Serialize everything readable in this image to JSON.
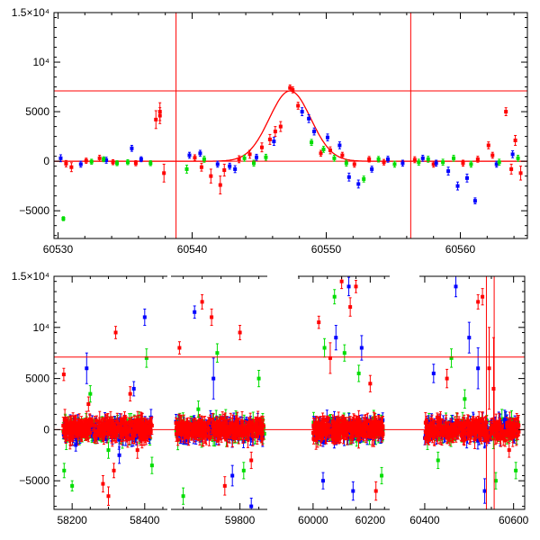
{
  "chart_data": [
    {
      "type": "scatter",
      "title": "",
      "xlabel": "",
      "ylabel": "",
      "xlim": [
        60529.7,
        60565
      ],
      "ylim": [
        -7800,
        15000
      ],
      "x_ticks": [
        60530,
        60540,
        60550,
        60560
      ],
      "x_tick_labels": [
        "60530",
        "60540",
        "60550",
        "60560"
      ],
      "y_ticks": [
        -5000,
        0,
        5000,
        10000,
        15000
      ],
      "y_tick_labels": [
        "−5000",
        "0",
        "5000",
        "10⁴",
        "1.5×10⁴"
      ],
      "hlines": [
        0,
        7100
      ],
      "vlines": [
        60538.8,
        60556.3
      ],
      "model_curve": {
        "color": "#ff0000",
        "shape": "gaussian",
        "peak_x": 60547.3,
        "peak_y": 7100,
        "sigma_days": 1.55
      },
      "series": [
        {
          "color": "#ff0000",
          "points": [
            [
              60530.6,
              -250,
              320
            ],
            [
              60531.0,
              -600,
              450
            ],
            [
              60532.1,
              50,
              260
            ],
            [
              60533.1,
              300,
              300
            ],
            [
              60534.1,
              -100,
              250
            ],
            [
              60535.8,
              -200,
              260
            ],
            [
              60537.3,
              4200,
              900
            ],
            [
              60537.6,
              5000,
              900
            ],
            [
              60537.6,
              4600,
              800
            ],
            [
              60537.9,
              -1200,
              900
            ],
            [
              60540.2,
              350,
              300
            ],
            [
              60540.7,
              -600,
              400
            ],
            [
              60541.4,
              -1500,
              700
            ],
            [
              60542.1,
              -2400,
              900
            ],
            [
              60542.4,
              -900,
              600
            ],
            [
              60543.5,
              200,
              350
            ],
            [
              60544.3,
              700,
              400
            ],
            [
              60545.2,
              1400,
              450
            ],
            [
              60545.8,
              2200,
              500
            ],
            [
              60546.2,
              3000,
              500
            ],
            [
              60546.6,
              3500,
              500
            ],
            [
              60547.3,
              7400,
              300
            ],
            [
              60547.5,
              7200,
              300
            ],
            [
              60547.9,
              5600,
              350
            ],
            [
              60549.6,
              800,
              300
            ],
            [
              60550.3,
              1100,
              350
            ],
            [
              60551.2,
              600,
              300
            ],
            [
              60552.1,
              -300,
              300
            ],
            [
              60553.2,
              200,
              280
            ],
            [
              60554.3,
              -100,
              280
            ],
            [
              60556.6,
              150,
              300
            ],
            [
              60558.0,
              -300,
              300
            ],
            [
              60560.2,
              -200,
              300
            ],
            [
              60561.3,
              200,
              300
            ],
            [
              60562.1,
              1600,
              350
            ],
            [
              60562.4,
              600,
              300
            ],
            [
              60563.4,
              5000,
              400
            ],
            [
              60563.8,
              -800,
              500
            ],
            [
              60564.1,
              2100,
              500
            ],
            [
              60564.5,
              -1200,
              700
            ]
          ]
        },
        {
          "color": "#0000ff",
          "points": [
            [
              60530.2,
              300,
              350
            ],
            [
              60531.7,
              -300,
              300
            ],
            [
              60533.6,
              100,
              300
            ],
            [
              60535.5,
              1300,
              300
            ],
            [
              60536.2,
              200,
              250
            ],
            [
              60539.8,
              600,
              300
            ],
            [
              60540.6,
              800,
              300
            ],
            [
              60541.9,
              -300,
              300
            ],
            [
              60542.8,
              -500,
              300
            ],
            [
              60543.2,
              -800,
              350
            ],
            [
              60544.8,
              400,
              300
            ],
            [
              60546.1,
              2000,
              400
            ],
            [
              60548.2,
              5000,
              400
            ],
            [
              60548.7,
              4300,
              400
            ],
            [
              60549.1,
              3000,
              350
            ],
            [
              60550.1,
              2400,
              350
            ],
            [
              60551.0,
              1600,
              350
            ],
            [
              60551.7,
              -1600,
              400
            ],
            [
              60552.4,
              -2300,
              400
            ],
            [
              60553.4,
              -800,
              300
            ],
            [
              60554.6,
              200,
              300
            ],
            [
              60555.7,
              -200,
              300
            ],
            [
              60557.2,
              300,
              300
            ],
            [
              60558.2,
              -200,
              300
            ],
            [
              60559.1,
              -1000,
              400
            ],
            [
              60559.8,
              -2500,
              400
            ],
            [
              60560.5,
              -1700,
              400
            ],
            [
              60561.1,
              -4000,
              300
            ],
            [
              60562.7,
              -300,
              300
            ],
            [
              60563.9,
              700,
              350
            ]
          ]
        },
        {
          "color": "#00dd00",
          "points": [
            [
              60530.4,
              -5800,
              200
            ],
            [
              60532.5,
              -50,
              250
            ],
            [
              60533.4,
              200,
              250
            ],
            [
              60534.4,
              -200,
              250
            ],
            [
              60535.2,
              -100,
              250
            ],
            [
              60536.9,
              -200,
              250
            ],
            [
              60539.6,
              -800,
              400
            ],
            [
              60540.9,
              200,
              300
            ],
            [
              60543.9,
              300,
              300
            ],
            [
              60544.6,
              -200,
              300
            ],
            [
              60545.5,
              400,
              300
            ],
            [
              60548.9,
              1900,
              300
            ],
            [
              60549.8,
              1200,
              300
            ],
            [
              60550.6,
              300,
              300
            ],
            [
              60551.5,
              -200,
              300
            ],
            [
              60552.8,
              -1800,
              300
            ],
            [
              60553.9,
              200,
              280
            ],
            [
              60555.1,
              -300,
              300
            ],
            [
              60556.9,
              -100,
              300
            ],
            [
              60557.6,
              200,
              300
            ],
            [
              60558.7,
              -100,
              300
            ],
            [
              60559.5,
              300,
              300
            ],
            [
              60560.8,
              -300,
              300
            ],
            [
              60562.9,
              -100,
              300
            ],
            [
              60564.3,
              300,
              300
            ]
          ]
        }
      ]
    },
    {
      "type": "scatter",
      "title": "",
      "xlabel": "",
      "ylabel": "",
      "x_axis": "broken",
      "x_ranges": [
        [
          58150,
          58460
        ],
        [
          59620,
          59870
        ],
        [
          59950,
          60265
        ],
        [
          60390,
          60625
        ]
      ],
      "ylim": [
        -7800,
        15000
      ],
      "x_ticks": [
        58200,
        58400,
        59800,
        60000,
        60200,
        60400,
        60600
      ],
      "x_tick_labels": [
        "58200",
        "58400",
        "59800",
        "60000",
        "60200",
        "60400",
        "60600"
      ],
      "y_ticks": [
        -5000,
        0,
        5000,
        10000,
        15000
      ],
      "y_tick_labels": [
        "−5000",
        "0",
        "5000",
        "10⁴",
        "1.5×10⁴"
      ],
      "hlines": [
        0,
        7100
      ],
      "vlines": [
        60538.8,
        60556.3
      ],
      "dense_bands": [
        {
          "x_range": [
            58175,
            58420
          ],
          "y_center": 0,
          "y_spread": 1300
        },
        {
          "x_range": [
            59630,
            59865
          ],
          "y_center": 0,
          "y_spread": 1300
        },
        {
          "x_range": [
            60000,
            60245
          ],
          "y_center": 0,
          "y_spread": 1300
        },
        {
          "x_range": [
            60400,
            60612
          ],
          "y_center": 0,
          "y_spread": 1300
        }
      ],
      "outliers": [
        {
          "color": "#ff0000",
          "points": [
            [
              58177,
              5400,
              600
            ],
            [
              58245,
              2500,
              700
            ],
            [
              58285,
              -5300,
              800
            ],
            [
              58300,
              -6500,
              900
            ],
            [
              58315,
              -4000,
              700
            ],
            [
              58320,
              9500,
              600
            ],
            [
              58360,
              3500,
              700
            ],
            [
              58380,
              -2000,
              800
            ],
            [
              59640,
              8000,
              600
            ],
            [
              59700,
              12500,
              700
            ],
            [
              59725,
              11000,
              800
            ],
            [
              59760,
              -5500,
              900
            ],
            [
              59800,
              9500,
              700
            ],
            [
              59830,
              -3000,
              800
            ],
            [
              60020,
              10500,
              600
            ],
            [
              60060,
              7000,
              1500
            ],
            [
              60100,
              14500,
              700
            ],
            [
              60130,
              12000,
              900
            ],
            [
              60150,
              14000,
              600
            ],
            [
              60200,
              4500,
              800
            ],
            [
              60220,
              -6000,
              900
            ],
            [
              60450,
              5000,
              900
            ],
            [
              60520,
              12500,
              700
            ],
            [
              60530,
              13000,
              800
            ],
            [
              60545,
              6000,
              4000
            ],
            [
              60555,
              4000,
              5000
            ],
            [
              60590,
              -2000,
              700
            ]
          ]
        },
        {
          "color": "#0000ff",
          "points": [
            [
              58210,
              -1500,
              600
            ],
            [
              58240,
              6000,
              1500
            ],
            [
              58330,
              -2500,
              800
            ],
            [
              58370,
              4000,
              700
            ],
            [
              58400,
              11000,
              800
            ],
            [
              59680,
              11500,
              600
            ],
            [
              59730,
              5000,
              2000
            ],
            [
              59780,
              -4500,
              1000
            ],
            [
              59830,
              -7500,
              800
            ],
            [
              60035,
              -5000,
              800
            ],
            [
              60080,
              9000,
              1200
            ],
            [
              60125,
              14000,
              900
            ],
            [
              60140,
              -6000,
              900
            ],
            [
              60170,
              8000,
              1200
            ],
            [
              60420,
              5500,
              900
            ],
            [
              60470,
              14000,
              1000
            ],
            [
              60500,
              9000,
              1500
            ],
            [
              60520,
              6000,
              2000
            ],
            [
              60535,
              -6000,
              1200
            ],
            [
              60580,
              1000,
              900
            ]
          ]
        },
        {
          "color": "#00dd00",
          "points": [
            [
              58178,
              -4000,
              700
            ],
            [
              58200,
              -5500,
              500
            ],
            [
              58250,
              3500,
              800
            ],
            [
              58300,
              -2000,
              800
            ],
            [
              58405,
              7000,
              900
            ],
            [
              58420,
              -3500,
              800
            ],
            [
              59650,
              -6500,
              800
            ],
            [
              59690,
              2000,
              800
            ],
            [
              59740,
              7500,
              900
            ],
            [
              59810,
              -4000,
              800
            ],
            [
              59850,
              5000,
              800
            ],
            [
              60040,
              8000,
              900
            ],
            [
              60075,
              13000,
              700
            ],
            [
              60110,
              7500,
              800
            ],
            [
              60160,
              5500,
              800
            ],
            [
              60240,
              -4500,
              800
            ],
            [
              60430,
              -3000,
              800
            ],
            [
              60460,
              7000,
              900
            ],
            [
              60490,
              3000,
              900
            ],
            [
              60560,
              -5000,
              800
            ],
            [
              60605,
              -4000,
              800
            ]
          ]
        }
      ]
    }
  ]
}
